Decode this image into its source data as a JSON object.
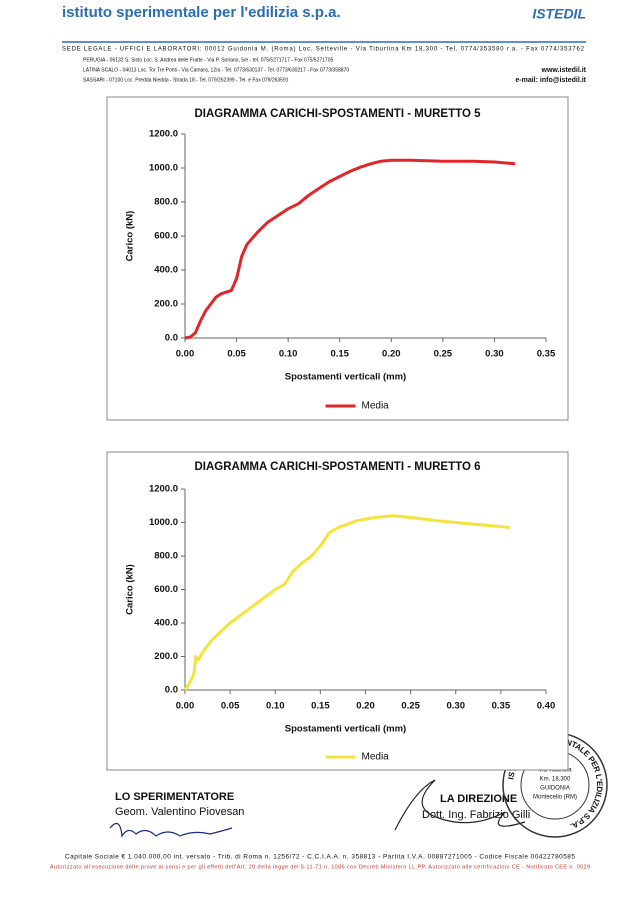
{
  "header": {
    "title": "istituto sperimentale per l'edilizia s.p.a.",
    "logo": "ISTEDIL",
    "lines": [
      "SEDE LEGALE - UFFICI E LABORATORI: 00012 Guidonia M. (Roma) Loc. Setteville - Via Tiburtina Km 18,300 - Tel. 0774/353580 r.a. - Fax 0774/353762",
      "PERUGIA - 06132 S. Sisto Loc. S. Andrea delle Fratte - Via P. Soriano, 5/e - tel. 075/5271717 - Fax 075/5271705",
      "LATINA SCALO - 04013 Loc. Tor Tre Ponti - Via Camara, 12/a - Tel. 0773/630137 - Tel. 0773/630217 - Fax 0773/358870",
      "SASSARI - 07100 Loc. Predda Niedda - Strada 18 - Tel. 079/262399 - Tel. e Fax 079/263591"
    ],
    "web": "www.istedil.it",
    "email": "e-mail: info@istedil.it"
  },
  "chart_data": [
    {
      "type": "line",
      "title": "DIAGRAMMA CARICHI-SPOSTAMENTI - MURETTO 5",
      "x_label": "Spostamenti verticali (mm)",
      "y_label": "Carico (kN)",
      "x": [
        0,
        0.005,
        0.01,
        0.015,
        0.02,
        0.025,
        0.03,
        0.035,
        0.04,
        0.045,
        0.05,
        0.055,
        0.06,
        0.07,
        0.08,
        0.09,
        0.1,
        0.11,
        0.12,
        0.13,
        0.14,
        0.15,
        0.16,
        0.17,
        0.18,
        0.19,
        0.2,
        0.22,
        0.25,
        0.28,
        0.3,
        0.32
      ],
      "series": [
        {
          "name": "Media",
          "color": "#e0262a",
          "values": [
            0,
            5,
            30,
            100,
            160,
            200,
            240,
            260,
            270,
            280,
            350,
            480,
            550,
            620,
            680,
            720,
            760,
            790,
            840,
            880,
            920,
            950,
            980,
            1005,
            1025,
            1040,
            1045,
            1045,
            1040,
            1040,
            1035,
            1025
          ]
        }
      ],
      "xlim": [
        0,
        0.35
      ],
      "xticks": [
        {
          "value": 0,
          "label": "0.00"
        },
        {
          "value": 0.05,
          "label": "0.05"
        },
        {
          "value": 0.1,
          "label": "0.10"
        },
        {
          "value": 0.15,
          "label": "0.15"
        },
        {
          "value": 0.2,
          "label": "0.20"
        },
        {
          "value": 0.25,
          "label": "0.25"
        },
        {
          "value": 0.3,
          "label": "0.30"
        },
        {
          "value": 0.35,
          "label": "0.35"
        }
      ],
      "ylim": [
        0,
        1200
      ],
      "yticks": [
        {
          "value": 0,
          "label": "0.0"
        },
        {
          "value": 200,
          "label": "200.0"
        },
        {
          "value": 400,
          "label": "400.0"
        },
        {
          "value": 600,
          "label": "600.0"
        },
        {
          "value": 800,
          "label": "800.0"
        },
        {
          "value": 1000,
          "label": "1000.0"
        },
        {
          "value": 1200,
          "label": "1200.0"
        }
      ],
      "legend": "bottom"
    },
    {
      "type": "line",
      "title": "DIAGRAMMA CARICHI-SPOSTAMENTI - MURETTO 6",
      "x_label": "Spostamenti verticali (mm)",
      "y_label": "Carico (kN)",
      "x": [
        0,
        0.005,
        0.01,
        0.012,
        0.015,
        0.02,
        0.03,
        0.05,
        0.07,
        0.09,
        0.1,
        0.11,
        0.12,
        0.13,
        0.14,
        0.15,
        0.16,
        0.17,
        0.19,
        0.21,
        0.23,
        0.25,
        0.28,
        0.3,
        0.33,
        0.36
      ],
      "series": [
        {
          "name": "Media",
          "color": "#f3e43c",
          "values": [
            0,
            40,
            100,
            200,
            180,
            230,
            300,
            400,
            480,
            560,
            600,
            630,
            710,
            760,
            800,
            860,
            940,
            970,
            1010,
            1030,
            1040,
            1030,
            1010,
            1000,
            985,
            970
          ]
        }
      ],
      "xlim": [
        0,
        0.4
      ],
      "xticks": [
        {
          "value": 0,
          "label": "0.00"
        },
        {
          "value": 0.05,
          "label": "0.05"
        },
        {
          "value": 0.1,
          "label": "0.10"
        },
        {
          "value": 0.15,
          "label": "0.15"
        },
        {
          "value": 0.2,
          "label": "0.20"
        },
        {
          "value": 0.25,
          "label": "0.25"
        },
        {
          "value": 0.3,
          "label": "0.30"
        },
        {
          "value": 0.35,
          "label": "0.35"
        },
        {
          "value": 0.4,
          "label": "0.40"
        }
      ],
      "ylim": [
        0,
        1200
      ],
      "yticks": [
        {
          "value": 0,
          "label": "0.0"
        },
        {
          "value": 200,
          "label": "200.0"
        },
        {
          "value": 400,
          "label": "400.0"
        },
        {
          "value": 600,
          "label": "600.0"
        },
        {
          "value": 800,
          "label": "800.0"
        },
        {
          "value": 1000,
          "label": "1000.0"
        },
        {
          "value": 1200,
          "label": "1200.0"
        }
      ],
      "legend": "bottom"
    }
  ],
  "signatures": {
    "left_role": "LO SPERIMENTATORE",
    "left_name": "Geom. Valentino Piovesan",
    "right_role": "LA DIREZIONE",
    "right_name": "Dott. Ing. Fabrizio Gilli"
  },
  "stamp": {
    "ring": "ISTITUTO SPERIMENTALE PER L'EDILIZIA S.P.A.",
    "lines": [
      "Via Tiburtina",
      "Km. 18,300",
      "GUIDONIA",
      "Montecelio (RM)"
    ]
  },
  "footer": {
    "capital": "Capitale Sociale € 1.040.000,00 int. versato - Trib. di Roma n. 1256/72 - C.C.I.A.A. n. 358813 - Partita I.V.A. 00887271005 - Codice Fiscale 00422780585",
    "authorization": "Autorizzato all'esecuzione delle prove ai sensi e per gli effetti dell'Art. 20 della legge del 5-11-71 n. 1086 con Decreti Ministero LL.PP.   Autorizzato alle certificazioni CE - Notificato CEE n. 0529"
  }
}
